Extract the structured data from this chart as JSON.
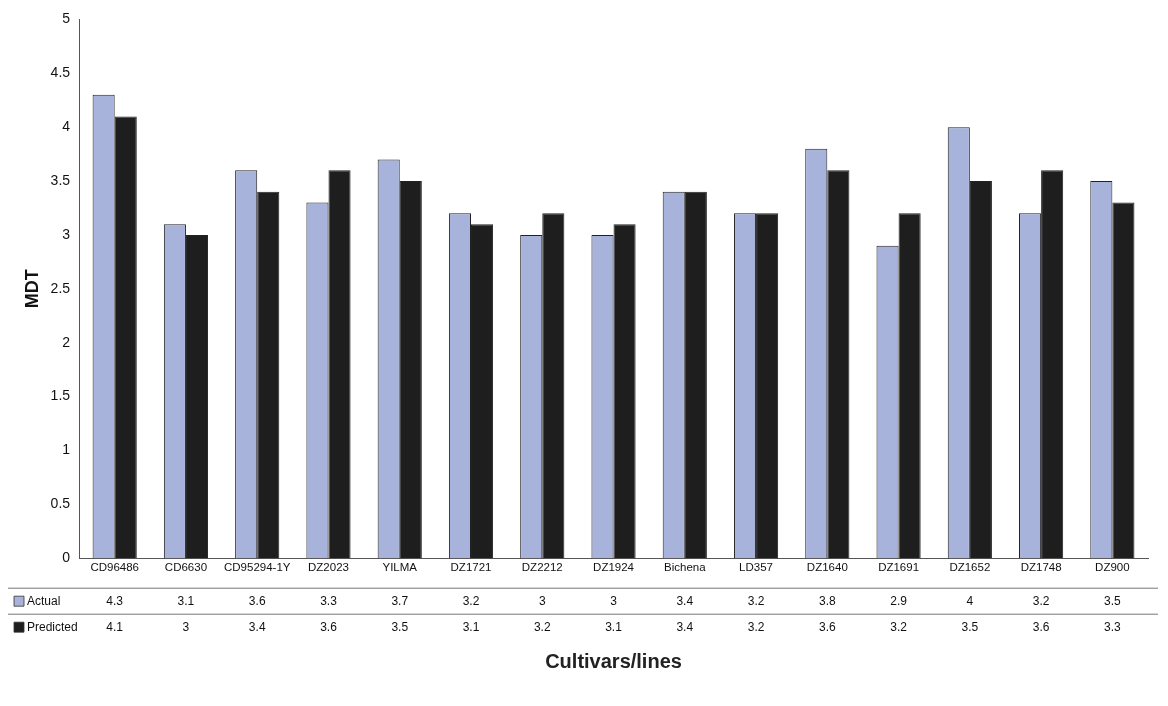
{
  "chart_data": {
    "type": "bar",
    "xlabel": "Cultivars/lines",
    "ylabel": "MDT",
    "categories": [
      "CD96486",
      "CD6630",
      "CD95294-1Y",
      "DZ2023",
      "YILMA",
      "DZ1721",
      "DZ2212",
      "DZ1924",
      "Bichena",
      "LD357",
      "DZ1640",
      "DZ1691",
      "DZ1652",
      "DZ1748",
      "DZ900"
    ],
    "series": [
      {
        "name": "Actual",
        "color": "#a8b3dc",
        "values": [
          4.3,
          3.1,
          3.6,
          3.3,
          3.7,
          3.2,
          3,
          3,
          3.4,
          3.2,
          3.8,
          2.9,
          4,
          3.2,
          3.5
        ]
      },
      {
        "name": "Predicted",
        "color": "#1e1e1e",
        "values": [
          4.1,
          3,
          3.4,
          3.6,
          3.5,
          3.1,
          3.2,
          3.1,
          3.4,
          3.2,
          3.6,
          3.2,
          3.5,
          3.6,
          3.3
        ]
      }
    ],
    "ylim": [
      0,
      5
    ],
    "yticks": [
      0,
      0.5,
      1,
      1.5,
      2,
      2.5,
      3,
      3.5,
      4,
      4.5,
      5
    ],
    "data_labels": true,
    "legend": "bottom"
  }
}
